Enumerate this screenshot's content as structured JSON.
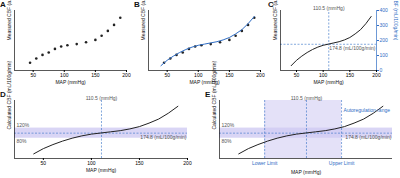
{
  "chart_data": [
    {
      "type": "scatter",
      "title": "A",
      "xlabel": "MAP (mmHg)",
      "ylabel": "Measured CBF (a.u.)",
      "xlim": [
        20,
        200
      ],
      "xticks": [
        50,
        100,
        150,
        200
      ],
      "ylim": [
        0,
        10
      ],
      "series": [
        {
          "type": "scatter",
          "marker": "circle",
          "color": "#222222",
          "x": [
            45,
            55,
            65,
            75,
            85,
            95,
            105,
            120,
            135,
            150,
            160,
            170,
            180,
            190
          ],
          "values": [
            1.3,
            2.0,
            2.6,
            3.0,
            3.6,
            4.0,
            4.2,
            4.4,
            4.7,
            5.1,
            5.8,
            6.6,
            7.6,
            8.8
          ]
        }
      ]
    },
    {
      "type": "scatter",
      "title": "B",
      "xlabel": "MAP (mmHg)",
      "ylabel": "Measured CBF (a.u.)",
      "xlim": [
        20,
        200
      ],
      "xticks": [
        50,
        100,
        150,
        200
      ],
      "ylim": [
        0,
        10
      ],
      "series": [
        {
          "type": "scatter",
          "marker": "circle",
          "color": "#222222",
          "x": [
            45,
            55,
            65,
            75,
            85,
            95,
            105,
            120,
            135,
            150,
            160,
            170,
            180,
            190
          ],
          "values": [
            1.3,
            2.0,
            2.6,
            3.0,
            3.6,
            4.0,
            4.2,
            4.4,
            4.7,
            5.1,
            5.8,
            6.6,
            7.6,
            8.8
          ]
        },
        {
          "type": "line",
          "color": "#2f6dc4",
          "x": [
            40,
            50,
            60,
            70,
            80,
            90,
            100,
            110,
            120,
            130,
            140,
            150,
            160,
            170,
            180,
            190
          ],
          "values": [
            0.8,
            1.7,
            2.4,
            3.0,
            3.5,
            3.9,
            4.2,
            4.4,
            4.6,
            4.8,
            5.1,
            5.5,
            6.1,
            6.8,
            7.8,
            9.0
          ]
        }
      ]
    },
    {
      "type": "line",
      "title": "C",
      "xlabel": "MAP (mmHg)",
      "ylabel": "Measured CBF (a.u.)",
      "y2label": "Calculated CBF (mL/100g/min)",
      "xlim": [
        20,
        200
      ],
      "xticks": [
        50,
        100,
        150,
        200
      ],
      "y2lim": [
        0,
        400
      ],
      "y2ticks": [
        0,
        100,
        200,
        300,
        400
      ],
      "series": [
        {
          "type": "line",
          "axis": "y2",
          "color": "#222222",
          "x": [
            40,
            50,
            60,
            70,
            80,
            90,
            100,
            110,
            120,
            130,
            140,
            150,
            160,
            170,
            180,
            190
          ],
          "values": [
            32,
            68,
            96,
            120,
            140,
            156,
            168,
            176,
            184,
            192,
            204,
            220,
            244,
            272,
            312,
            360
          ]
        }
      ],
      "annotations": [
        {
          "x": 110.5,
          "label": "110.5 (mmHg)"
        },
        {
          "y": 174.8,
          "label": "174.8 (mL/100g/min)"
        }
      ]
    },
    {
      "type": "line",
      "title": "D",
      "xlabel": "MAP (mmHg)",
      "ylabel": "Calculated CBF (mL/100g/min)",
      "xlim": [
        20,
        200
      ],
      "xticks": [
        50,
        100,
        150,
        200
      ],
      "ylim": [
        0,
        400
      ],
      "series": [
        {
          "type": "line",
          "color": "#222222",
          "x": [
            40,
            50,
            60,
            70,
            80,
            90,
            100,
            110,
            120,
            130,
            140,
            150,
            160,
            170,
            180,
            190
          ],
          "values": [
            32,
            68,
            96,
            120,
            140,
            156,
            168,
            176,
            184,
            192,
            204,
            220,
            244,
            272,
            312,
            360
          ]
        }
      ],
      "annotations": [
        {
          "x": 110.5,
          "label": "110.5 (mmHg)"
        },
        {
          "y": 174.8,
          "label": "174.8 (mL/100g/min)"
        }
      ],
      "band": [
        {
          "value": 80,
          "label": "80%"
        },
        {
          "value": 120,
          "label": "120%"
        }
      ]
    },
    {
      "type": "line",
      "title": "E",
      "xlabel": "MAP (mmHg)",
      "ylabel": "Calculated CBF (mL/100g/min)",
      "xlim": [
        20,
        200
      ],
      "ylim": [
        0,
        400
      ],
      "series": [
        {
          "type": "line",
          "color": "#222222",
          "x": [
            40,
            50,
            60,
            70,
            80,
            90,
            100,
            110,
            120,
            130,
            140,
            150,
            160,
            170,
            180,
            190
          ],
          "values": [
            32,
            68,
            96,
            120,
            140,
            156,
            168,
            176,
            184,
            192,
            204,
            220,
            244,
            272,
            312,
            360
          ]
        }
      ],
      "annotations": [
        {
          "x": 110.5,
          "label": "110.5 (mmHg)"
        },
        {
          "y": 174.8,
          "label": "174.8 (mL/100g/min)"
        }
      ],
      "band": [
        {
          "value": 80,
          "label": "80%"
        },
        {
          "value": 120,
          "label": "120%"
        }
      ],
      "range": {
        "label": "Autoregulation range",
        "lower": {
          "value": 67,
          "label": "Lower Limit"
        },
        "upper": {
          "value": 147,
          "label": "Upper Limit"
        }
      }
    }
  ]
}
